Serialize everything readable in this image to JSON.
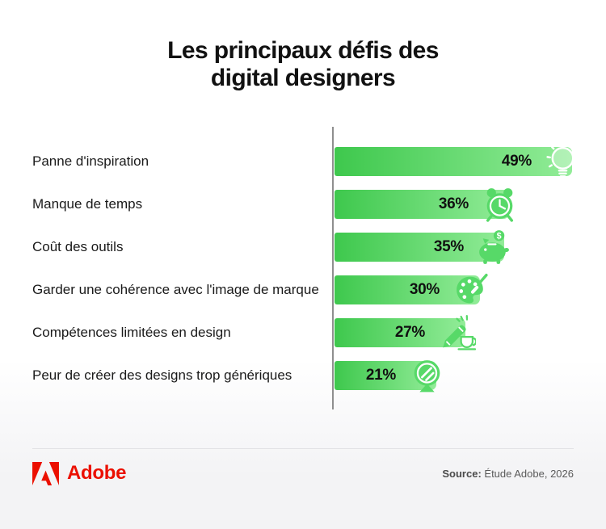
{
  "title": {
    "line1": "Les principaux défis des",
    "line2": "digital designers"
  },
  "chart_data": {
    "type": "bar",
    "orientation": "horizontal",
    "title": "Les principaux défis des digital designers",
    "categories": [
      "Panne d'inspiration",
      "Manque de temps",
      "Coût des outils",
      "Garder une cohérence avec l'image de marque",
      "Compétences limitées en design",
      "Peur de créer des designs trop génériques"
    ],
    "values": [
      49,
      36,
      35,
      30,
      27,
      21
    ],
    "value_labels": [
      "49%",
      "36%",
      "35%",
      "30%",
      "27%",
      "21%"
    ],
    "unit": "%",
    "xlim": [
      0,
      50
    ],
    "grid": false,
    "legend": "none",
    "icons": [
      "lightbulb-icon",
      "alarm-clock-icon",
      "piggy-bank-icon",
      "paint-palette-icon",
      "pencil-cup-icon",
      "mirror-icon"
    ],
    "bar_color_start": "#3ec84d",
    "bar_color_end": "#92ec98",
    "axis_color": "#8f8f8f"
  },
  "footer": {
    "brand": "Adobe",
    "brand_color": "#EB1000",
    "source_label": "Source:",
    "source_text": " Étude Adobe, 2026"
  }
}
